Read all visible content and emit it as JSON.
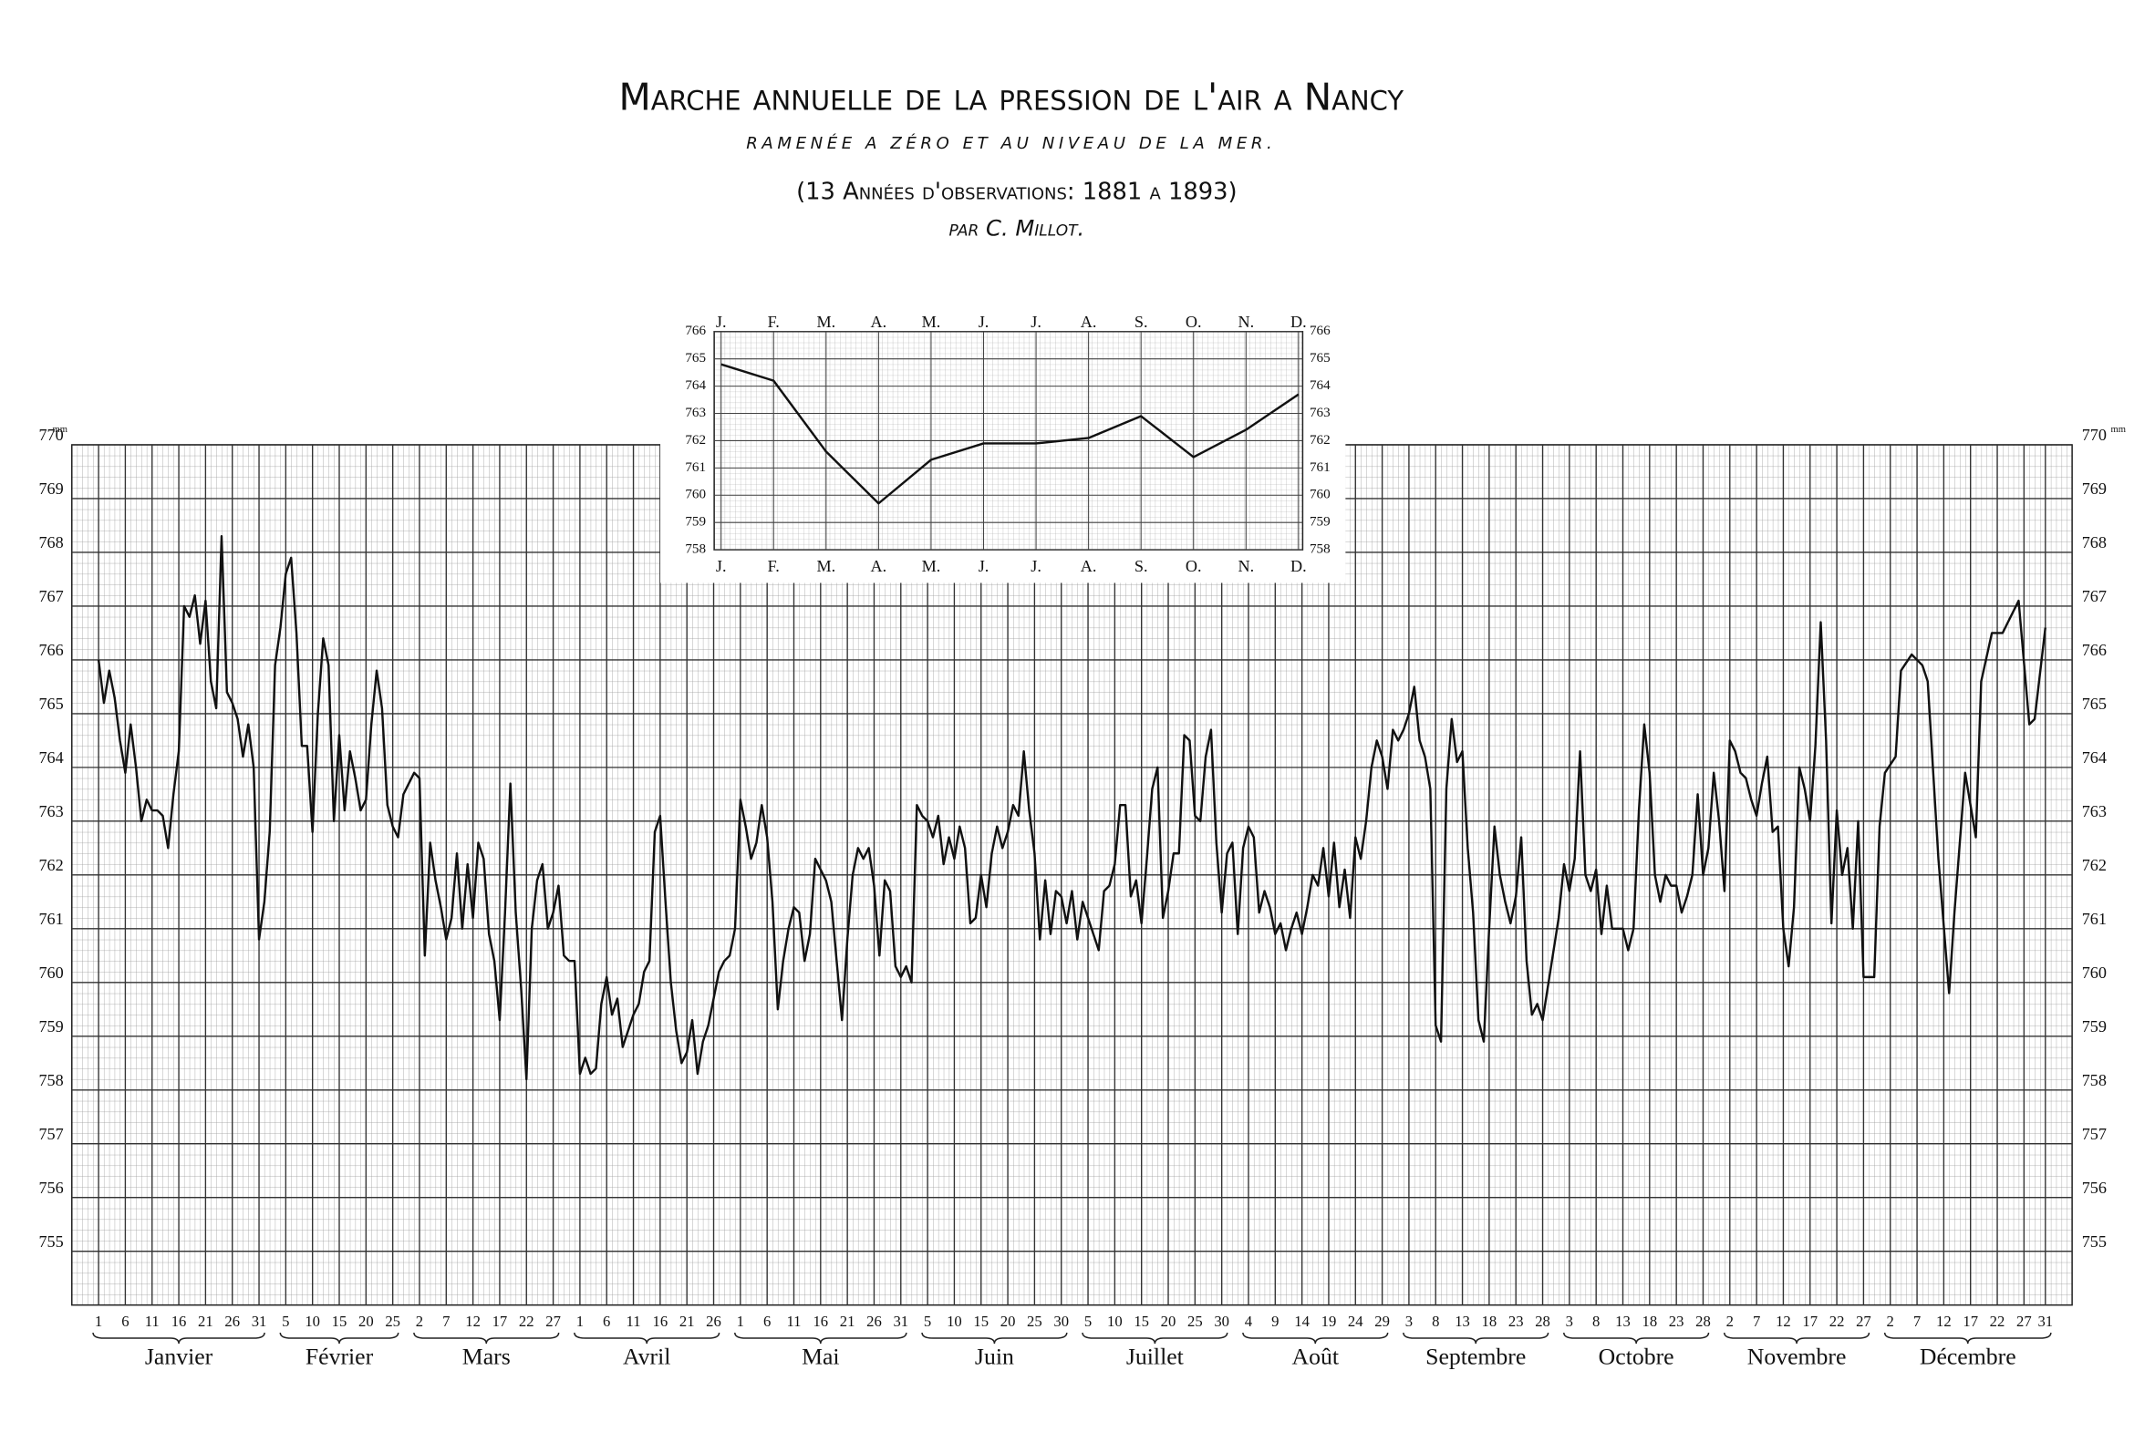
{
  "chart_data": [
    {
      "type": "line",
      "title": "Marche annuelle de la pression de l'air a Nancy",
      "subtitle": "RAMENÉE A ZÉRO ET AU NIVEAU DE LA MER.",
      "note": "(13 Années d'observations: 1881 a 1893)",
      "author": "par C. Millot.",
      "y_unit": "mm",
      "color": "#111",
      "xlim": [
        -4,
        370
      ],
      "ylim": [
        754,
        770
      ],
      "yticks": [
        755,
        756,
        757,
        758,
        759,
        760,
        761,
        762,
        763,
        764,
        765,
        766,
        767,
        768,
        769,
        770
      ],
      "grid": true,
      "months": [
        {
          "name": "Janvier",
          "ticks": [
            1,
            6,
            11,
            16,
            21,
            26,
            31
          ]
        },
        {
          "name": "Février",
          "ticks": [
            {
              "value": 36,
              "label": "5"
            },
            {
              "value": 41,
              "label": "10"
            },
            {
              "value": 46,
              "label": "15"
            },
            {
              "value": 51,
              "label": "20"
            },
            {
              "value": 56,
              "label": "25"
            }
          ]
        },
        {
          "name": "Mars",
          "ticks": [
            {
              "value": 61,
              "label": "2"
            },
            {
              "value": 66,
              "label": "7"
            },
            {
              "value": 71,
              "label": "12"
            },
            {
              "value": 76,
              "label": "17"
            },
            {
              "value": 81,
              "label": "22"
            },
            {
              "value": 86,
              "label": "27"
            }
          ]
        },
        {
          "name": "Avril",
          "ticks": [
            {
              "value": 91,
              "label": "1"
            },
            {
              "value": 96,
              "label": "6"
            },
            {
              "value": 101,
              "label": "11"
            },
            {
              "value": 106,
              "label": "16"
            },
            {
              "value": 111,
              "label": "21"
            },
            {
              "value": 116,
              "label": "26"
            }
          ]
        },
        {
          "name": "Mai",
          "ticks": [
            {
              "value": 121,
              "label": "1"
            },
            {
              "value": 126,
              "label": "6"
            },
            {
              "value": 131,
              "label": "11"
            },
            {
              "value": 136,
              "label": "16"
            },
            {
              "value": 141,
              "label": "21"
            },
            {
              "value": 146,
              "label": "26"
            },
            {
              "value": 151,
              "label": "31"
            }
          ]
        },
        {
          "name": "Juin",
          "ticks": [
            {
              "value": 156,
              "label": "5"
            },
            {
              "value": 161,
              "label": "10"
            },
            {
              "value": 166,
              "label": "15"
            },
            {
              "value": 171,
              "label": "20"
            },
            {
              "value": 176,
              "label": "25"
            },
            {
              "value": 181,
              "label": "30"
            }
          ]
        },
        {
          "name": "Juillet",
          "ticks": [
            {
              "value": 186,
              "label": "5"
            },
            {
              "value": 191,
              "label": "10"
            },
            {
              "value": 196,
              "label": "15"
            },
            {
              "value": 201,
              "label": "20"
            },
            {
              "value": 206,
              "label": "25"
            },
            {
              "value": 211,
              "label": "30"
            }
          ]
        },
        {
          "name": "Août",
          "ticks": [
            {
              "value": 216,
              "label": "4"
            },
            {
              "value": 221,
              "label": "9"
            },
            {
              "value": 226,
              "label": "14"
            },
            {
              "value": 231,
              "label": "19"
            },
            {
              "value": 236,
              "label": "24"
            },
            {
              "value": 241,
              "label": "29"
            }
          ]
        },
        {
          "name": "Septembre",
          "ticks": [
            {
              "value": 246,
              "label": "3"
            },
            {
              "value": 251,
              "label": "8"
            },
            {
              "value": 256,
              "label": "13"
            },
            {
              "value": 261,
              "label": "18"
            },
            {
              "value": 266,
              "label": "23"
            },
            {
              "value": 271,
              "label": "28"
            }
          ]
        },
        {
          "name": "Octobre",
          "ticks": [
            {
              "value": 276,
              "label": "3"
            },
            {
              "value": 281,
              "label": "8"
            },
            {
              "value": 286,
              "label": "13"
            },
            {
              "value": 291,
              "label": "18"
            },
            {
              "value": 296,
              "label": "23"
            },
            {
              "value": 301,
              "label": "28"
            }
          ]
        },
        {
          "name": "Novembre",
          "ticks": [
            {
              "value": 306,
              "label": "2"
            },
            {
              "value": 311,
              "label": "7"
            },
            {
              "value": 316,
              "label": "12"
            },
            {
              "value": 321,
              "label": "17"
            },
            {
              "value": 326,
              "label": "22"
            },
            {
              "value": 331,
              "label": "27"
            }
          ]
        },
        {
          "name": "Décembre",
          "ticks": [
            {
              "value": 336,
              "label": "2"
            },
            {
              "value": 341,
              "label": "7"
            },
            {
              "value": 346,
              "label": "12"
            },
            {
              "value": 351,
              "label": "17"
            },
            {
              "value": 356,
              "label": "22"
            },
            {
              "value": 361,
              "label": "27"
            },
            {
              "value": 365,
              "label": "31"
            }
          ]
        }
      ],
      "x": [
        1,
        2,
        3,
        4,
        5,
        6,
        7,
        8,
        9,
        10,
        11,
        12,
        13,
        14,
        15,
        16,
        17,
        18,
        19,
        20,
        21,
        22,
        23,
        24,
        25,
        26,
        27,
        28,
        29,
        30,
        31,
        32,
        33,
        34,
        35,
        36,
        37,
        38,
        39,
        40,
        41,
        42,
        43,
        44,
        45,
        46,
        47,
        48,
        49,
        50,
        51,
        52,
        53,
        54,
        55,
        56,
        57,
        58,
        59,
        60,
        61,
        62,
        63,
        64,
        65,
        66,
        67,
        68,
        69,
        70,
        71,
        72,
        73,
        74,
        75,
        76,
        77,
        78,
        79,
        80,
        81,
        82,
        83,
        84,
        85,
        86,
        87,
        88,
        89,
        90,
        91,
        92,
        93,
        94,
        95,
        96,
        97,
        98,
        99,
        100,
        101,
        102,
        103,
        104,
        105,
        106,
        107,
        108,
        109,
        110,
        111,
        112,
        113,
        114,
        115,
        116,
        117,
        118,
        119,
        120,
        121,
        122,
        123,
        124,
        125,
        126,
        127,
        128,
        129,
        130,
        131,
        132,
        133,
        134,
        135,
        136,
        137,
        138,
        139,
        140,
        141,
        142,
        143,
        144,
        145,
        146,
        147,
        148,
        149,
        150,
        151,
        152,
        153,
        154,
        155,
        156,
        157,
        158,
        159,
        160,
        161,
        162,
        163,
        164,
        165,
        166,
        167,
        168,
        169,
        170,
        171,
        172,
        173,
        174,
        175,
        176,
        177,
        178,
        179,
        180,
        181,
        182,
        183,
        184,
        185,
        186,
        187,
        188,
        189,
        190,
        191,
        192,
        193,
        194,
        195,
        196,
        197,
        198,
        199,
        200,
        201,
        202,
        203,
        204,
        205,
        206,
        207,
        208,
        209,
        210,
        211,
        212,
        213,
        214,
        215,
        216,
        217,
        218,
        219,
        220,
        221,
        222,
        223,
        224,
        225,
        226,
        227,
        228,
        229,
        230,
        231,
        232,
        233,
        234,
        235,
        236,
        237,
        238,
        239,
        240,
        241,
        242,
        243,
        244,
        245,
        246,
        247,
        248,
        249,
        250,
        251,
        252,
        253,
        254,
        255,
        256,
        257,
        258,
        259,
        260,
        261,
        262,
        263,
        264,
        265,
        266,
        267,
        268,
        269,
        270,
        271,
        274,
        275,
        276,
        277,
        278,
        279,
        280,
        281,
        282,
        283,
        284,
        285,
        286,
        287,
        288,
        289,
        290,
        291,
        292,
        293,
        294,
        295,
        296,
        297,
        298,
        299,
        300,
        301,
        302,
        303,
        304,
        305,
        306,
        307,
        308,
        309,
        310,
        311,
        312,
        313,
        314,
        315,
        316,
        317,
        318,
        319,
        320,
        321,
        322,
        323,
        324,
        325,
        326,
        327,
        328,
        329,
        330,
        331,
        332,
        333,
        334,
        335,
        337,
        338,
        340,
        342,
        343,
        345,
        347,
        348,
        350,
        352,
        353,
        355,
        357,
        358,
        360,
        362,
        363,
        365
      ],
      "values": [
        766.0,
        765.2,
        765.8,
        765.3,
        764.5,
        763.9,
        764.8,
        764.0,
        763.0,
        763.4,
        763.2,
        763.2,
        763.1,
        762.5,
        763.5,
        764.3,
        767.0,
        766.8,
        767.2,
        766.3,
        767.1,
        765.6,
        765.1,
        768.3,
        765.4,
        765.2,
        764.9,
        764.2,
        764.8,
        764.0,
        760.8,
        761.5,
        762.8,
        765.9,
        766.6,
        767.6,
        767.9,
        766.5,
        764.4,
        764.4,
        762.8,
        765.0,
        766.4,
        765.9,
        763.0,
        764.6,
        763.2,
        764.3,
        763.8,
        763.2,
        763.4,
        764.8,
        765.8,
        765.1,
        763.3,
        762.9,
        762.7,
        763.5,
        763.7,
        763.9,
        763.8,
        760.5,
        762.6,
        761.9,
        761.4,
        760.8,
        761.2,
        762.4,
        761.0,
        762.2,
        761.2,
        762.6,
        762.3,
        760.9,
        760.4,
        759.3,
        761.3,
        763.7,
        761.3,
        759.9,
        758.2,
        761.0,
        761.9,
        762.2,
        761.0,
        761.3,
        761.8,
        760.5,
        760.4,
        760.4,
        758.3,
        758.6,
        758.3,
        758.4,
        759.6,
        760.1,
        759.4,
        759.7,
        758.8,
        759.1,
        759.4,
        759.6,
        760.2,
        760.4,
        762.8,
        763.1,
        761.5,
        760.0,
        759.1,
        758.5,
        758.7,
        759.3,
        758.3,
        758.9,
        759.2,
        759.7,
        760.2,
        760.4,
        760.5,
        761.0,
        763.4,
        762.9,
        762.3,
        762.6,
        763.3,
        762.7,
        761.5,
        759.5,
        760.4,
        761.0,
        761.4,
        761.3,
        760.4,
        760.9,
        762.3,
        762.1,
        761.9,
        761.5,
        760.4,
        759.3,
        760.8,
        762.0,
        762.5,
        762.3,
        762.5,
        761.8,
        760.5,
        761.9,
        761.7,
        760.3,
        760.1,
        760.3,
        760.0,
        763.3,
        763.1,
        763.0,
        762.7,
        763.1,
        762.2,
        762.7,
        762.3,
        762.9,
        762.5,
        761.1,
        761.2,
        762.0,
        761.4,
        762.4,
        762.9,
        762.5,
        762.8,
        763.3,
        763.1,
        764.3,
        763.2,
        762.4,
        760.8,
        761.9,
        760.9,
        761.7,
        761.6,
        761.1,
        761.7,
        760.8,
        761.5,
        761.2,
        760.9,
        760.6,
        761.7,
        761.8,
        762.2,
        763.3,
        763.3,
        761.6,
        761.9,
        761.1,
        762.3,
        763.6,
        764.0,
        761.2,
        761.7,
        762.4,
        762.4,
        764.6,
        764.5,
        763.1,
        763.0,
        764.2,
        764.7,
        762.6,
        761.3,
        762.4,
        762.6,
        760.9,
        762.5,
        762.9,
        762.7,
        761.3,
        761.7,
        761.4,
        760.9,
        761.1,
        760.6,
        761.0,
        761.3,
        760.9,
        761.4,
        762.0,
        761.8,
        762.5,
        761.6,
        762.6,
        761.4,
        762.1,
        761.2,
        762.7,
        762.3,
        763.0,
        764.0,
        764.5,
        764.2,
        763.6,
        764.7,
        764.5,
        764.7,
        765.0,
        765.5,
        764.5,
        764.2,
        763.6,
        759.2,
        758.9,
        763.6,
        764.9,
        764.1,
        764.3,
        762.5,
        761.3,
        759.3,
        758.9,
        761.0,
        762.9,
        762.0,
        761.5,
        761.1,
        761.6,
        762.7,
        760.4,
        759.4,
        759.6,
        759.3,
        761.2,
        762.2,
        761.7,
        762.3,
        764.3,
        762.0,
        761.7,
        762.1,
        760.9,
        761.8,
        761.0,
        761.0,
        761.0,
        760.6,
        761.0,
        763.2,
        764.8,
        763.9,
        762.0,
        761.5,
        762.0,
        761.8,
        761.8,
        761.3,
        761.6,
        762.0,
        763.5,
        762.0,
        762.5,
        763.9,
        763.0,
        761.7,
        764.5,
        764.3,
        763.9,
        763.8,
        763.4,
        763.1,
        763.7,
        764.2,
        762.8,
        762.9,
        761.0,
        760.3,
        761.4,
        764.0,
        763.6,
        763.0,
        764.4,
        766.7,
        764.5,
        761.1,
        763.2,
        762.0,
        762.5,
        761.0,
        763.0,
        760.1,
        760.1,
        760.1,
        762.9,
        763.9,
        764.2,
        765.8,
        766.1,
        765.9,
        765.6,
        762.3,
        759.8,
        761.3,
        763.9,
        762.7,
        765.6,
        766.5,
        766.5,
        766.7,
        767.1,
        764.8,
        764.9,
        766.6
      ]
    },
    {
      "type": "line",
      "color": "#111",
      "categories": [
        "J.",
        "F.",
        "M.",
        "A.",
        "M.",
        "J.",
        "J.",
        "A.",
        "S.",
        "O.",
        "N.",
        "D."
      ],
      "values": [
        764.8,
        764.2,
        761.6,
        759.7,
        761.3,
        761.9,
        761.9,
        762.1,
        762.9,
        761.4,
        762.4,
        763.7
      ],
      "ylim": [
        758,
        766
      ],
      "yticks": [
        758,
        759,
        760,
        761,
        762,
        763,
        764,
        765,
        766
      ],
      "grid": true
    }
  ]
}
